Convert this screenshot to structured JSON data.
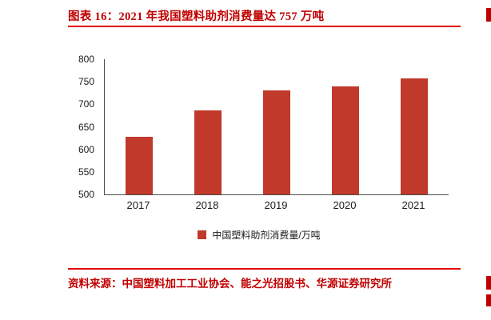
{
  "figure": {
    "title": "图表 16：2021 年我国塑料助剂消费量达 757 万吨",
    "source": "资料来源：中国塑料加工工业协会、能之光招股书、华源证券研究所"
  },
  "chart_data": {
    "type": "bar",
    "categories": [
      "2017",
      "2018",
      "2019",
      "2020",
      "2021"
    ],
    "values": [
      627,
      687,
      730,
      740,
      757
    ],
    "title": "",
    "xlabel": "",
    "ylabel": "",
    "ylim": [
      500,
      800
    ],
    "yticks": [
      500,
      550,
      600,
      650,
      700,
      750,
      800
    ],
    "legend": "中国塑料助剂消费量/万吨",
    "legend_position": "bottom",
    "grid": false
  },
  "colors": {
    "accent_red": "#c00000",
    "rule_red": "#e00000",
    "bar_red": "#c0392b",
    "axis_gray": "#4d4d4d",
    "text_black": "#1a1a1a"
  }
}
